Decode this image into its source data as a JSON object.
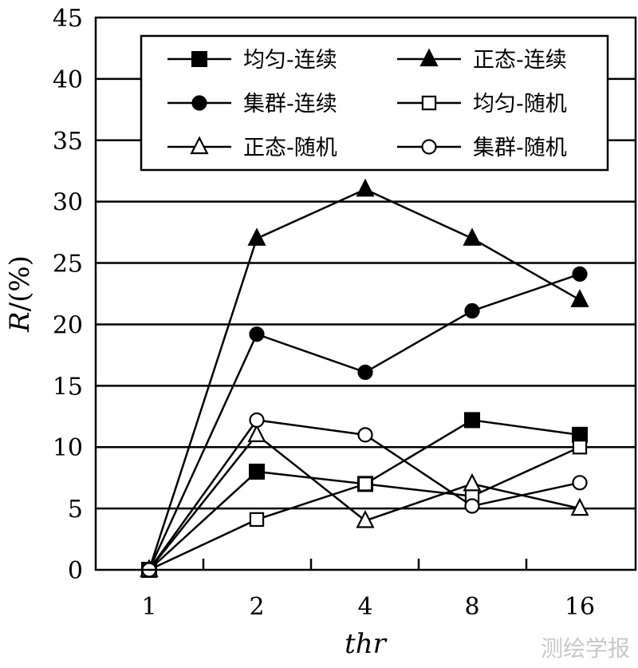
{
  "chart_data": {
    "type": "line",
    "xlabel": "thr",
    "ylabel_italic": "R",
    "ylabel_rest": "/(%)",
    "categories": [
      "1",
      "2",
      "4",
      "8",
      "16"
    ],
    "ylim": [
      0,
      45
    ],
    "yticks": [
      0,
      5,
      10,
      15,
      20,
      25,
      30,
      35,
      40,
      45
    ],
    "grid": "horizontal",
    "legend_position": "top",
    "series": [
      {
        "name": "均匀-连续",
        "marker": "square-filled",
        "values": [
          0,
          8,
          7,
          12.2,
          11
        ]
      },
      {
        "name": "正态-连续",
        "marker": "triangle-filled",
        "values": [
          0,
          27,
          31,
          27,
          22
        ]
      },
      {
        "name": "集群-连续",
        "marker": "circle-filled",
        "values": [
          0,
          19.2,
          16.1,
          21.1,
          24.1
        ]
      },
      {
        "name": "均匀-随机",
        "marker": "square-open",
        "values": [
          0,
          4.1,
          7,
          6,
          10
        ]
      },
      {
        "name": "正态-随机",
        "marker": "triangle-open",
        "values": [
          0,
          11,
          4,
          7,
          5
        ]
      },
      {
        "name": "集群-随机",
        "marker": "circle-open",
        "values": [
          0,
          12.2,
          11,
          5.2,
          7.1
        ]
      }
    ]
  },
  "watermark": "测绘学报"
}
